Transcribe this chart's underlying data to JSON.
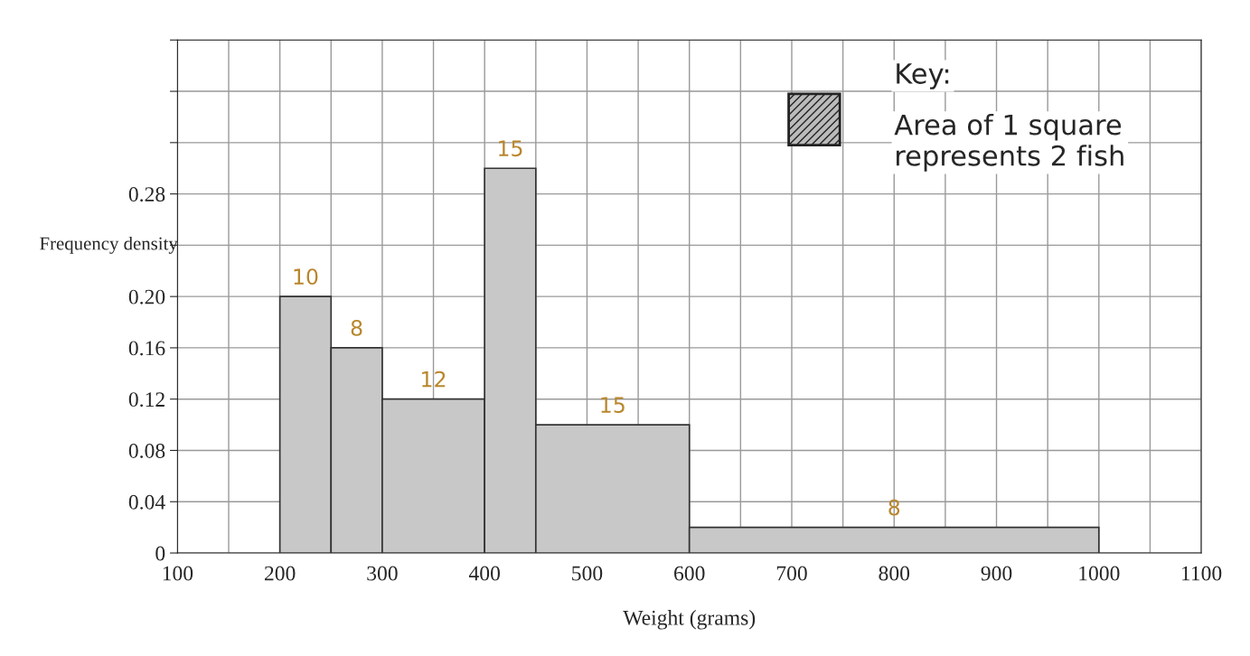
{
  "chart_data": {
    "type": "histogram",
    "xlabel": "Weight (grams)",
    "ylabel": "Frequency density",
    "bins": [
      200,
      250,
      300,
      400,
      450,
      600,
      1000
    ],
    "values": [
      0.2,
      0.16,
      0.12,
      0.3,
      0.1,
      0.02
    ],
    "color": "#c8c8c8",
    "xlim": [
      100,
      1100
    ],
    "ylim": [
      0,
      0.4
    ],
    "xticks": [
      100,
      {
        "value": 150,
        "label": null
      },
      200,
      {
        "value": 250,
        "label": null
      },
      300,
      {
        "value": 350,
        "label": null
      },
      400,
      {
        "value": 450,
        "label": null
      },
      500,
      {
        "value": 550,
        "label": null
      },
      600,
      {
        "value": 650,
        "label": null
      },
      700,
      {
        "value": 750,
        "label": null
      },
      800,
      {
        "value": 850,
        "label": null
      },
      900,
      {
        "value": 950,
        "label": null
      },
      1000,
      {
        "value": 1050,
        "label": null
      },
      1100
    ],
    "yticks": [
      {
        "value": 0,
        "label": "0"
      },
      {
        "value": 0.04,
        "label": "0.04"
      },
      {
        "value": 0.08,
        "label": "0.08"
      },
      {
        "value": 0.12,
        "label": "0.12"
      },
      {
        "value": 0.16,
        "label": "0.16"
      },
      {
        "value": 0.2,
        "label": "0.20"
      },
      {
        "value": 0.24,
        "label": null
      },
      {
        "value": 0.28,
        "label": "0.28"
      },
      {
        "value": 0.32,
        "label": null
      },
      {
        "value": 0.36,
        "label": null
      },
      {
        "value": 0.4,
        "label": null
      }
    ],
    "grid": true,
    "annotations": [
      "Key:",
      "Area of 1 square represents 2 fish",
      {
        "text": "10",
        "x": 225,
        "y": 0.2
      },
      {
        "text": "8",
        "x": 275,
        "y": 0.16
      },
      {
        "text": "12",
        "x": 350,
        "y": 0.12
      },
      {
        "text": "15",
        "x": 425,
        "y": 0.3
      },
      {
        "text": "15",
        "x": 525,
        "y": 0.1
      },
      {
        "text": "8",
        "x": 800,
        "y": 0.02
      }
    ]
  }
}
